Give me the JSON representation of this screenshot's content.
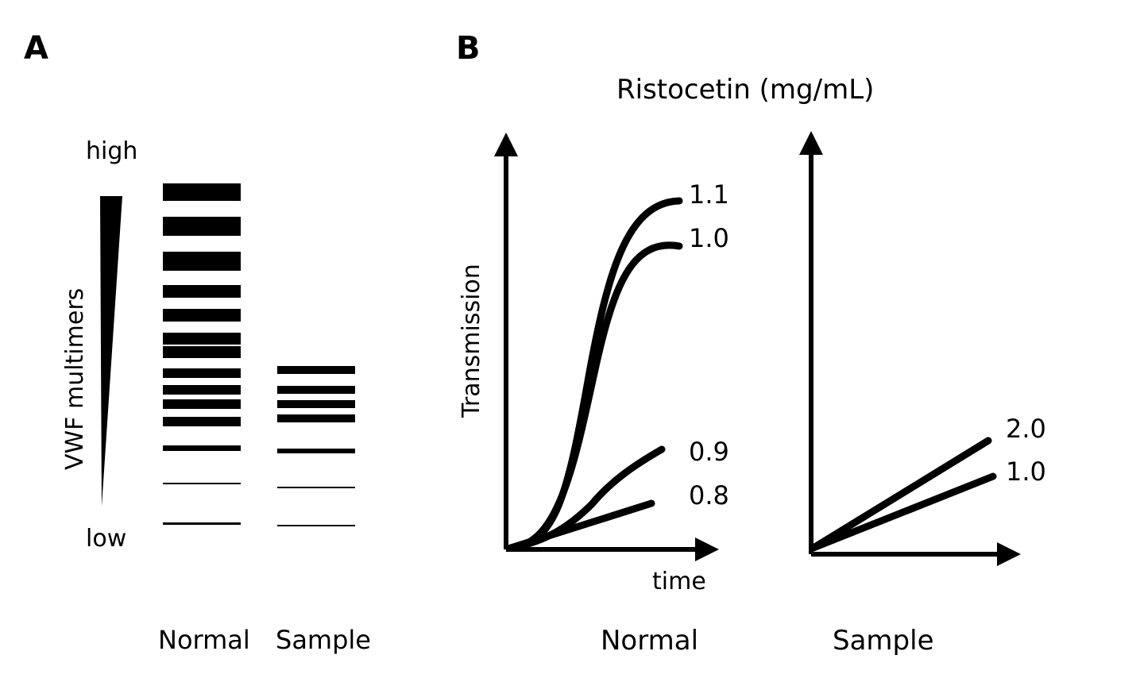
{
  "panel_a": {
    "label": "A",
    "scale_high": "high",
    "scale_low": "low",
    "ylabel": "VWF multimers",
    "lane_labels": [
      "Normal",
      "Sample"
    ]
  },
  "panel_b": {
    "label": "B",
    "title": "Ristocetin (mg/mL)",
    "ylabel": "Transmission",
    "xlabel": "time",
    "normal": {
      "caption": "Normal",
      "curve_labels": [
        "1.1",
        "1.0",
        "0.9",
        "0.8"
      ]
    },
    "sample": {
      "caption": "Sample",
      "curve_labels": [
        "2.0",
        "1.0"
      ]
    }
  }
}
